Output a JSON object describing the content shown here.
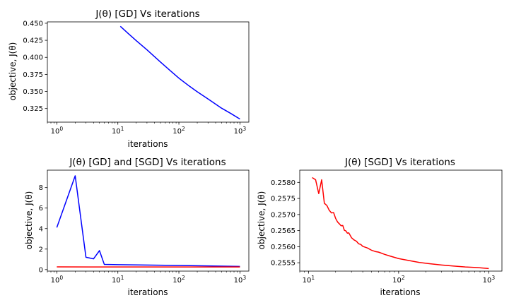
{
  "chart_data": [
    {
      "type": "line",
      "title": "J(θ) [GD] Vs iterations",
      "xlabel": "iterations",
      "ylabel": "objective, J(θ)",
      "xscale": "log",
      "xlim": [
        0.7,
        1400
      ],
      "ylim": [
        0.305,
        0.452
      ],
      "x_ticks": [
        {
          "v": 1,
          "b": "10",
          "e": "0"
        },
        {
          "v": 10,
          "b": "10",
          "e": "1"
        },
        {
          "v": 100,
          "b": "10",
          "e": "2"
        },
        {
          "v": 1000,
          "b": "10",
          "e": "3"
        }
      ],
      "y_ticks": [
        {
          "v": 0.325,
          "t": "0.325"
        },
        {
          "v": 0.35,
          "t": "0.350"
        },
        {
          "v": 0.375,
          "t": "0.375"
        },
        {
          "v": 0.4,
          "t": "0.400"
        },
        {
          "v": 0.425,
          "t": "0.425"
        },
        {
          "v": 0.45,
          "t": "0.450"
        }
      ],
      "series": [
        {
          "color": "#0000ff",
          "x": [
            11,
            15,
            20,
            30,
            50,
            70,
            100,
            150,
            200,
            300,
            500,
            700,
            1000
          ],
          "y": [
            0.4455,
            0.4345,
            0.4245,
            0.411,
            0.393,
            0.3815,
            0.3695,
            0.3575,
            0.3495,
            0.339,
            0.3255,
            0.318,
            0.3095
          ]
        }
      ]
    },
    {
      "type": "line",
      "title": "J(θ) [GD] and [SGD] Vs iterations",
      "xlabel": "iterations",
      "ylabel": "objective, J(θ)",
      "xscale": "log",
      "xlim": [
        0.7,
        1400
      ],
      "ylim": [
        -0.15,
        9.7
      ],
      "x_ticks": [
        {
          "v": 1,
          "b": "10",
          "e": "0"
        },
        {
          "v": 10,
          "b": "10",
          "e": "1"
        },
        {
          "v": 100,
          "b": "10",
          "e": "2"
        },
        {
          "v": 1000,
          "b": "10",
          "e": "3"
        }
      ],
      "y_ticks": [
        {
          "v": 0,
          "t": "0"
        },
        {
          "v": 2,
          "t": "2"
        },
        {
          "v": 4,
          "t": "4"
        },
        {
          "v": 6,
          "t": "6"
        },
        {
          "v": 8,
          "t": "8"
        }
      ],
      "series": [
        {
          "color": "#0000ff",
          "x": [
            1,
            2,
            3,
            4,
            5,
            6,
            10,
            100,
            1000
          ],
          "y": [
            4.1,
            9.15,
            1.2,
            1.05,
            1.85,
            0.5,
            0.48,
            0.4,
            0.31
          ]
        },
        {
          "color": "#ff0000",
          "x": [
            1,
            10,
            100,
            1000
          ],
          "y": [
            0.26,
            0.258,
            0.2557,
            0.2553
          ]
        }
      ]
    },
    {
      "type": "line",
      "title": "J(θ) [SGD] Vs iterations",
      "xlabel": "iterations",
      "ylabel": "objective, J(θ)",
      "xscale": "log",
      "xlim": [
        8.0,
        1400
      ],
      "ylim": [
        0.25524,
        0.25838
      ],
      "x_ticks": [
        {
          "v": 10,
          "b": "10",
          "e": "1"
        },
        {
          "v": 100,
          "b": "10",
          "e": "2"
        },
        {
          "v": 1000,
          "b": "10",
          "e": "3"
        }
      ],
      "y_ticks": [
        {
          "v": 0.2555,
          "t": "0.2555"
        },
        {
          "v": 0.256,
          "t": "0.2560"
        },
        {
          "v": 0.2565,
          "t": "0.2565"
        },
        {
          "v": 0.257,
          "t": "0.2570"
        },
        {
          "v": 0.2575,
          "t": "0.2575"
        },
        {
          "v": 0.258,
          "t": "0.2580"
        }
      ],
      "series": [
        {
          "color": "#ff0000",
          "x": [
            11,
            12,
            13,
            14,
            15,
            16,
            17,
            18,
            19,
            20,
            21,
            22,
            23,
            24,
            25,
            26,
            27,
            28,
            30,
            32,
            34,
            36,
            38,
            40,
            45,
            50,
            55,
            60,
            70,
            80,
            100,
            130,
            170,
            220,
            300,
            400,
            550,
            750,
            1000
          ],
          "y": [
            0.25815,
            0.25808,
            0.25765,
            0.25808,
            0.25735,
            0.25728,
            0.25713,
            0.25705,
            0.25706,
            0.25688,
            0.25677,
            0.25671,
            0.25665,
            0.25666,
            0.25651,
            0.25649,
            0.25642,
            0.25643,
            0.25628,
            0.25621,
            0.25617,
            0.25609,
            0.25607,
            0.25601,
            0.25596,
            0.25589,
            0.25585,
            0.25583,
            0.25576,
            0.25571,
            0.25563,
            0.25557,
            0.25551,
            0.25547,
            0.25543,
            0.2554,
            0.25537,
            0.25535,
            0.25532
          ]
        }
      ]
    }
  ]
}
